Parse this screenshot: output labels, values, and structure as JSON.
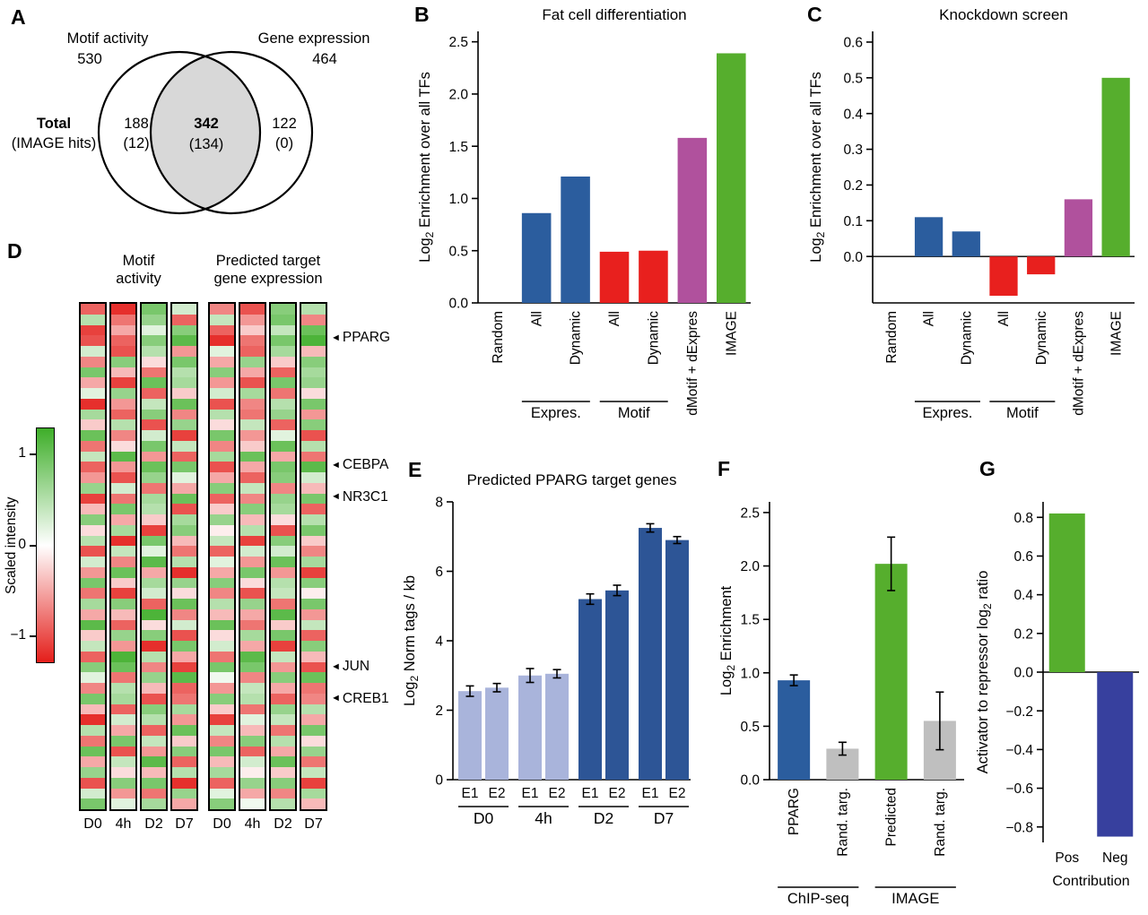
{
  "colors": {
    "blue": "#2b5d9e",
    "red": "#e8201e",
    "purple": "#b0519d",
    "green": "#56ae2d",
    "light_blue": "#a9b4db",
    "dark_blue": "#2d5596",
    "navy": "#37409e",
    "gray": "#bfbfbf",
    "heat_green": "#3eae29",
    "heat_red": "#e41e1a",
    "white": "#ffffff",
    "venn_fill": "#d8d8d8"
  },
  "panels": {
    "a": {
      "letter": "A"
    },
    "b": {
      "letter": "B"
    },
    "c": {
      "letter": "C"
    },
    "d": {
      "letter": "D",
      "heatmap_titles": [
        [
          "Motif",
          "activity"
        ],
        [
          "Predicted target",
          "gene expression"
        ]
      ],
      "scale_label": "Scaled intensity",
      "marker_glyph": "◄",
      "scale_ticks": [
        {
          "label": "1",
          "value": 1
        },
        {
          "label": "0",
          "value": 0
        },
        {
          "label": "−1",
          "value": -1
        }
      ]
    },
    "e": {
      "letter": "E"
    },
    "f": {
      "letter": "F"
    },
    "g": {
      "letter": "G"
    }
  },
  "venn": {
    "left_title": "Motif activity",
    "left_total": "530",
    "right_title": "Gene expression",
    "right_total": "464",
    "total_label": "Total",
    "total_sublabel": "(IMAGE hits)",
    "left_only": "188",
    "left_only_sub": "(12)",
    "overlap": "342",
    "overlap_sub": "(134)",
    "right_only": "122",
    "right_only_sub": "(0)"
  },
  "chart_data": [
    {
      "id": "B",
      "type": "bar",
      "title": "Fat cell differentiation",
      "ylabel": {
        "pre": "Log",
        "sub": "2",
        "post": " Enrichment over all TFs"
      },
      "ylim": [
        0,
        2.6
      ],
      "yticks": [
        0,
        0.5,
        1.0,
        1.5,
        2.0,
        2.5
      ],
      "ytick_decimals": 1,
      "bars": [
        {
          "label": "Random",
          "value": 0,
          "color": "blue"
        },
        {
          "label": "All",
          "value": 0.86,
          "color": "blue"
        },
        {
          "label": "Dynamic",
          "value": 1.21,
          "color": "blue"
        },
        {
          "label": "All",
          "value": 0.49,
          "color": "red"
        },
        {
          "label": "Dynamic",
          "value": 0.5,
          "color": "red"
        },
        {
          "label": "dMotif + dExpres",
          "value": 1.58,
          "color": "purple"
        },
        {
          "label": "IMAGE",
          "value": 2.39,
          "color": "green"
        }
      ],
      "groups": [
        {
          "label": "Expres.",
          "from": 1,
          "to": 2
        },
        {
          "label": "Motif",
          "from": 3,
          "to": 4
        }
      ]
    },
    {
      "id": "C",
      "type": "bar",
      "title": "Knockdown screen",
      "ylabel": {
        "pre": "Log",
        "sub": "2",
        "post": " Enrichment over all TFs"
      },
      "ylim": [
        -0.13,
        0.63
      ],
      "yticks": [
        0,
        0.1,
        0.2,
        0.3,
        0.4,
        0.5,
        0.6
      ],
      "ytick_decimals": 1,
      "bars": [
        {
          "label": "Random",
          "value": 0,
          "color": "blue"
        },
        {
          "label": "All",
          "value": 0.11,
          "color": "blue"
        },
        {
          "label": "Dynamic",
          "value": 0.07,
          "color": "blue"
        },
        {
          "label": "All",
          "value": -0.11,
          "color": "red"
        },
        {
          "label": "Dynamic",
          "value": -0.05,
          "color": "red"
        },
        {
          "label": "dMotif + dExpres",
          "value": 0.16,
          "color": "purple"
        },
        {
          "label": "IMAGE",
          "value": 0.5,
          "color": "green"
        }
      ],
      "groups": [
        {
          "label": "Expres.",
          "from": 1,
          "to": 2
        },
        {
          "label": "Motif",
          "from": 3,
          "to": 4
        }
      ]
    },
    {
      "id": "D",
      "type": "heatmap",
      "columns": [
        "D0",
        "4h",
        "D2",
        "D7"
      ],
      "value_range": [
        -1.3,
        1.3
      ],
      "markers": [
        {
          "label": "PPARG",
          "row": 3
        },
        {
          "label": "CEBPA",
          "row": 15
        },
        {
          "label": "NR3C1",
          "row": 18
        },
        {
          "label": "JUN",
          "row": 34
        },
        {
          "label": "CREB1",
          "row": 37
        }
      ],
      "motif_activity": [
        [
          -0.9,
          -1.2,
          0.9,
          0.3
        ],
        [
          0.5,
          -0.8,
          0.7,
          -0.9
        ],
        [
          -1.1,
          -0.5,
          0.2,
          0.8
        ],
        [
          -1.0,
          -0.9,
          0.8,
          1.1
        ],
        [
          0.3,
          -1.0,
          0.5,
          -0.6
        ],
        [
          -0.7,
          0.8,
          -0.2,
          0.9
        ],
        [
          0.9,
          -0.4,
          -0.8,
          0.5
        ],
        [
          -0.5,
          -1.1,
          1.0,
          0.6
        ],
        [
          0.2,
          0.7,
          -0.9,
          -0.3
        ],
        [
          -1.2,
          -0.6,
          0.4,
          1.0
        ],
        [
          0.6,
          -0.9,
          0.8,
          -0.7
        ],
        [
          -0.3,
          0.5,
          -1.0,
          0.7
        ],
        [
          1.0,
          -0.7,
          0.3,
          -1.1
        ],
        [
          -0.8,
          -0.2,
          0.9,
          0.4
        ],
        [
          0.4,
          1.1,
          -0.6,
          -0.9
        ],
        [
          -0.9,
          -0.6,
          1.0,
          0.9
        ],
        [
          -0.6,
          -1.0,
          0.7,
          0.2
        ],
        [
          0.7,
          0.3,
          -0.8,
          -0.5
        ],
        [
          -1.1,
          -0.8,
          0.6,
          1.0
        ],
        [
          -0.4,
          0.9,
          0.5,
          -1.0
        ],
        [
          0.8,
          -0.5,
          -0.3,
          0.6
        ],
        [
          -0.2,
          0.6,
          -1.1,
          0.8
        ],
        [
          0.5,
          -1.2,
          0.9,
          -0.4
        ],
        [
          -1.0,
          0.4,
          0.2,
          -0.8
        ],
        [
          0.3,
          -0.7,
          1.1,
          0.5
        ],
        [
          -0.6,
          1.0,
          -0.5,
          -1.2
        ],
        [
          0.9,
          -0.3,
          0.6,
          0.7
        ],
        [
          -0.8,
          -1.1,
          0.3,
          -0.2
        ],
        [
          0.6,
          0.8,
          -0.9,
          1.0
        ],
        [
          -0.5,
          -0.4,
          1.2,
          -0.7
        ],
        [
          1.1,
          -0.9,
          -0.2,
          0.3
        ],
        [
          -0.3,
          0.7,
          0.8,
          -1.0
        ],
        [
          0.4,
          -0.6,
          -1.2,
          0.9
        ],
        [
          -0.9,
          1.2,
          0.5,
          -0.5
        ],
        [
          0.8,
          1.0,
          -0.7,
          -1.1
        ],
        [
          0.2,
          -0.8,
          0.7,
          1.1
        ],
        [
          -0.7,
          0.5,
          -0.4,
          -0.9
        ],
        [
          0.9,
          0.6,
          -1.0,
          -0.8
        ],
        [
          -0.4,
          -0.9,
          0.8,
          0.6
        ],
        [
          -1.2,
          0.3,
          0.5,
          -0.6
        ],
        [
          0.5,
          -0.5,
          -0.9,
          1.0
        ],
        [
          -0.8,
          0.9,
          0.4,
          -0.3
        ],
        [
          1.0,
          -1.0,
          -0.6,
          0.8
        ],
        [
          -0.5,
          0.4,
          1.1,
          -0.9
        ],
        [
          0.7,
          -0.2,
          -0.4,
          0.5
        ],
        [
          -1.0,
          0.8,
          0.9,
          -1.2
        ],
        [
          0.3,
          -0.6,
          -0.8,
          0.7
        ],
        [
          0.9,
          0.2,
          0.6,
          -0.5
        ]
      ],
      "target_expression": [
        [
          -0.7,
          -1.0,
          0.8,
          0.5
        ],
        [
          0.4,
          -0.6,
          0.9,
          -0.7
        ],
        [
          -0.9,
          -0.3,
          0.4,
          1.0
        ],
        [
          -1.2,
          -0.8,
          0.9,
          1.2
        ],
        [
          0.2,
          -0.9,
          0.6,
          -0.4
        ],
        [
          -0.5,
          0.7,
          -0.3,
          0.8
        ],
        [
          0.8,
          -0.5,
          -0.9,
          0.6
        ],
        [
          -0.6,
          -1.0,
          0.9,
          0.7
        ],
        [
          0.3,
          0.6,
          -0.8,
          -0.2
        ],
        [
          -1.0,
          -0.7,
          0.5,
          0.9
        ],
        [
          0.5,
          -0.8,
          0.7,
          -0.6
        ],
        [
          -0.2,
          0.4,
          -0.9,
          0.8
        ],
        [
          0.9,
          -0.6,
          0.2,
          -1.0
        ],
        [
          -0.7,
          -0.3,
          1.0,
          0.5
        ],
        [
          0.6,
          1.0,
          -0.5,
          -0.8
        ],
        [
          -1.0,
          -0.5,
          0.9,
          1.1
        ],
        [
          -0.5,
          -0.9,
          0.8,
          0.3
        ],
        [
          0.8,
          0.4,
          -0.7,
          -0.4
        ],
        [
          -0.9,
          -0.7,
          0.7,
          0.9
        ],
        [
          -0.3,
          0.8,
          0.6,
          -0.9
        ],
        [
          0.7,
          -0.4,
          -0.2,
          0.5
        ],
        [
          -0.1,
          0.5,
          -1.0,
          0.9
        ],
        [
          0.4,
          -1.1,
          0.8,
          -0.3
        ],
        [
          -0.9,
          0.3,
          0.3,
          -0.7
        ],
        [
          0.2,
          -0.6,
          1.0,
          0.6
        ],
        [
          -0.5,
          0.9,
          -0.6,
          -1.1
        ],
        [
          0.8,
          -0.2,
          0.5,
          0.8
        ],
        [
          -0.7,
          -1.0,
          0.4,
          -0.1
        ],
        [
          0.5,
          0.7,
          -0.8,
          0.9
        ],
        [
          -0.4,
          -0.5,
          1.1,
          -0.6
        ],
        [
          1.0,
          -0.8,
          -0.3,
          0.4
        ],
        [
          -0.2,
          0.6,
          0.9,
          -0.9
        ],
        [
          0.3,
          -0.5,
          -1.1,
          0.8
        ],
        [
          -0.8,
          1.1,
          0.4,
          -0.4
        ],
        [
          0.9,
          0.9,
          -0.6,
          -1.0
        ],
        [
          0.1,
          -0.7,
          0.8,
          1.0
        ],
        [
          -0.6,
          0.4,
          -0.5,
          -0.8
        ],
        [
          0.8,
          0.5,
          -0.9,
          -0.7
        ],
        [
          -0.3,
          -0.8,
          0.7,
          0.5
        ],
        [
          -1.1,
          0.2,
          0.4,
          -0.5
        ],
        [
          0.4,
          -0.4,
          -0.8,
          0.9
        ],
        [
          -0.7,
          0.8,
          0.5,
          -0.2
        ],
        [
          0.9,
          -0.9,
          -0.5,
          0.7
        ],
        [
          -0.4,
          0.3,
          1.0,
          -0.8
        ],
        [
          0.6,
          -0.1,
          -0.3,
          0.4
        ],
        [
          -0.9,
          0.7,
          0.8,
          -1.1
        ],
        [
          0.2,
          -0.5,
          -0.7,
          0.6
        ],
        [
          0.8,
          0.1,
          0.5,
          -0.4
        ]
      ]
    },
    {
      "id": "E",
      "type": "bar",
      "title": "Predicted PPARG target genes",
      "ylabel": {
        "pre": "Log",
        "sub": "2",
        "post": " Norm tags / kb"
      },
      "ylim": [
        0,
        8
      ],
      "yticks": [
        0,
        2,
        4,
        6,
        8
      ],
      "ytick_decimals": 0,
      "bars": [
        {
          "label": "E1",
          "value": 2.55,
          "error": 0.15,
          "color": "light_blue"
        },
        {
          "label": "E2",
          "value": 2.65,
          "error": 0.12,
          "color": "light_blue"
        },
        {
          "label": "E1",
          "value": 3.0,
          "error": 0.2,
          "color": "light_blue"
        },
        {
          "label": "E2",
          "value": 3.05,
          "error": 0.12,
          "color": "light_blue"
        },
        {
          "label": "E1",
          "value": 5.2,
          "error": 0.15,
          "color": "dark_blue"
        },
        {
          "label": "E2",
          "value": 5.45,
          "error": 0.15,
          "color": "dark_blue"
        },
        {
          "label": "E1",
          "value": 7.25,
          "error": 0.12,
          "color": "dark_blue"
        },
        {
          "label": "E2",
          "value": 6.9,
          "error": 0.1,
          "color": "dark_blue"
        }
      ],
      "groups": [
        {
          "label": "D0",
          "from": 0,
          "to": 1
        },
        {
          "label": "4h",
          "from": 2,
          "to": 3
        },
        {
          "label": "D2",
          "from": 4,
          "to": 5
        },
        {
          "label": "D7",
          "from": 6,
          "to": 7
        }
      ]
    },
    {
      "id": "F",
      "type": "bar",
      "ylabel": {
        "pre": "Log",
        "sub": "2",
        "post": " Enrichment"
      },
      "ylim": [
        0,
        2.6
      ],
      "yticks": [
        0,
        0.5,
        1.0,
        1.5,
        2.0,
        2.5
      ],
      "ytick_decimals": 1,
      "bars": [
        {
          "label": "PPARG",
          "value": 0.93,
          "error": 0.05,
          "color": "blue"
        },
        {
          "label": "Rand. targ.",
          "value": 0.29,
          "error": 0.06,
          "color": "gray"
        },
        {
          "label": "Predicted",
          "value": 2.02,
          "error": 0.25,
          "color": "green"
        },
        {
          "label": "Rand. targ.",
          "value": 0.55,
          "error": 0.27,
          "color": "gray"
        }
      ],
      "groups": [
        {
          "label": "ChIP-seq",
          "from": 0,
          "to": 1
        },
        {
          "label": "IMAGE",
          "from": 2,
          "to": 3
        }
      ]
    },
    {
      "id": "G",
      "type": "bar",
      "ylabel": {
        "pre": "Activator to repressor log",
        "sub": "2",
        "post": " ratio"
      },
      "xlabel": "Contribution",
      "ylim": [
        -0.88,
        0.88
      ],
      "yticks": [
        0.8,
        0.6,
        0.4,
        0.2,
        0,
        -0.2,
        -0.4,
        -0.6,
        -0.8
      ],
      "ytick_decimals": 1,
      "bars": [
        {
          "label": "Pos",
          "value": 0.82,
          "color": "green"
        },
        {
          "label": "Neg",
          "value": -0.85,
          "color": "navy"
        }
      ]
    }
  ]
}
